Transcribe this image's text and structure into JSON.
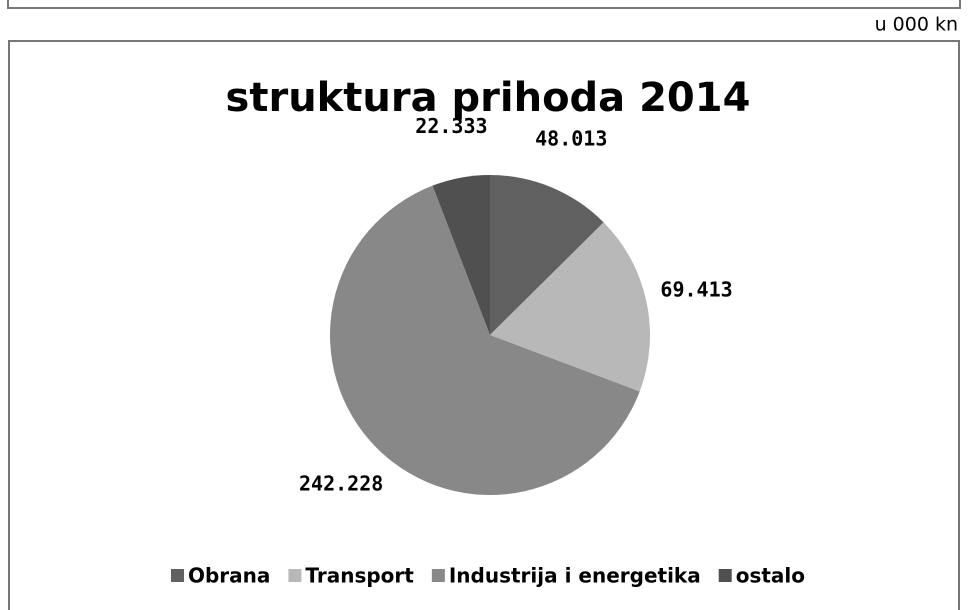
{
  "chart_data": {
    "type": "pie",
    "title": "struktura prihoda 2014",
    "unit": "u 000 kn",
    "categories": [
      "Obrana",
      "Transport",
      "Industrija i energetika",
      "ostalo"
    ],
    "values": [
      48013,
      69413,
      242228,
      22333
    ],
    "value_labels": [
      "48.013",
      "69.413",
      "242.228",
      "22.333"
    ],
    "colors": [
      "#606060",
      "#b8b8b8",
      "#888888",
      "#505050"
    ],
    "legend": "bottom"
  }
}
